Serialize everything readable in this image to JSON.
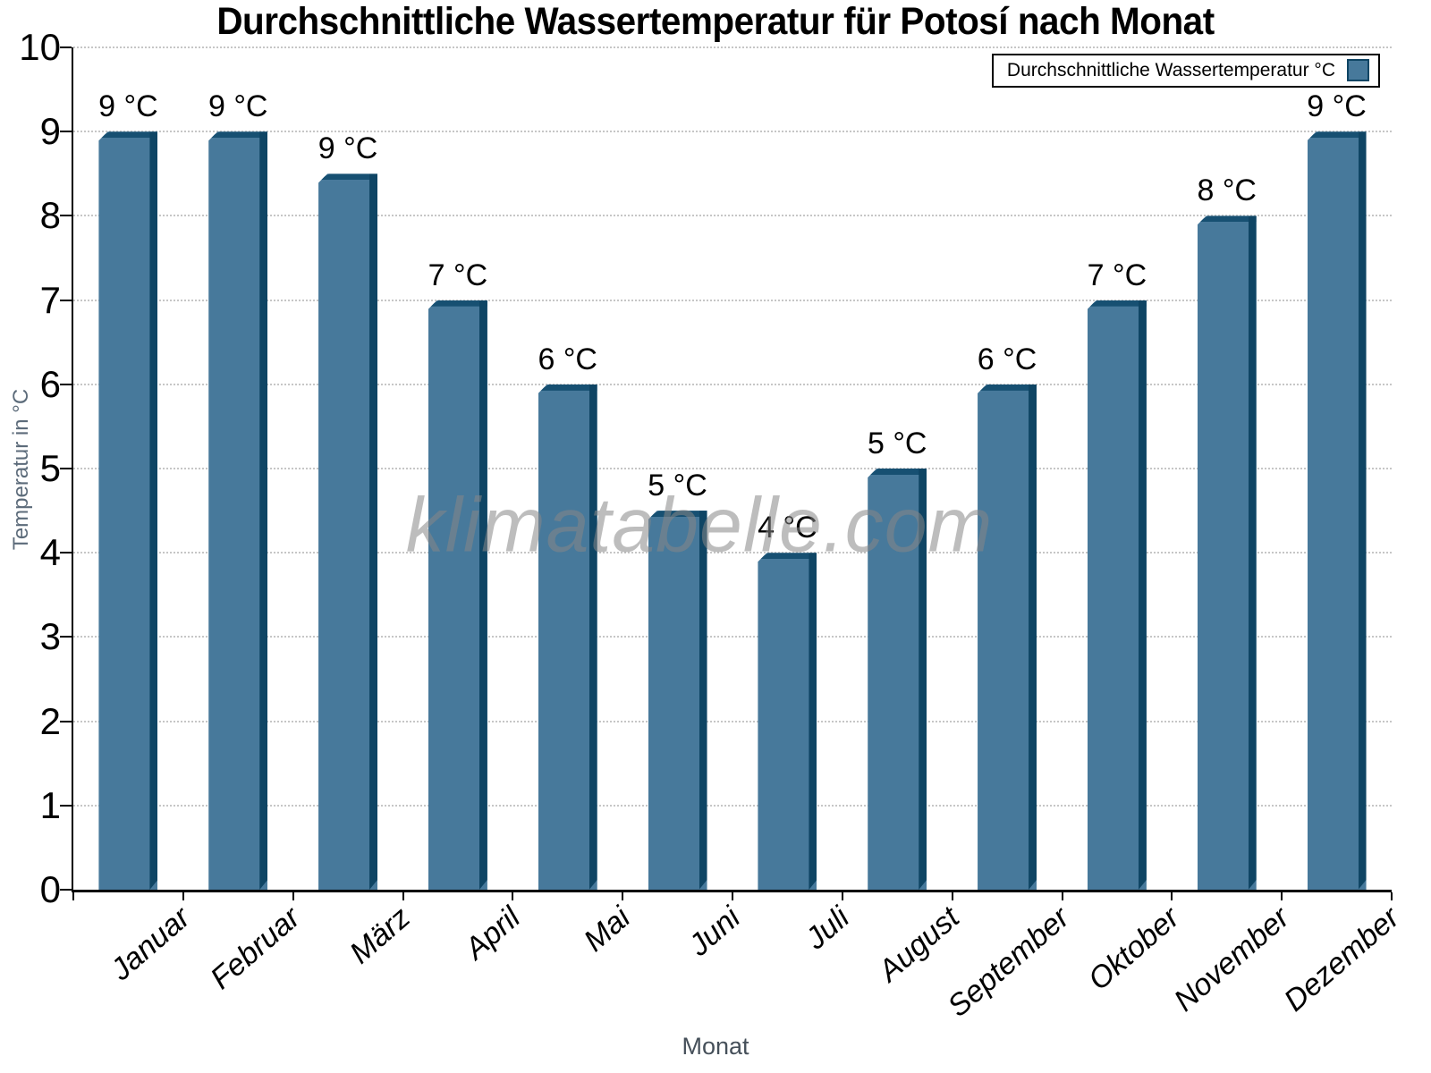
{
  "chart_data": {
    "type": "bar",
    "title": "Durchschnittliche Wassertemperatur für Potosí nach Monat",
    "xlabel": "Monat",
    "ylabel": "Temperatur in °C",
    "categories": [
      "Januar",
      "Februar",
      "März",
      "April",
      "Mai",
      "Juni",
      "Juli",
      "August",
      "September",
      "Oktober",
      "November",
      "Dezember"
    ],
    "values": [
      9,
      9,
      8.5,
      7,
      6,
      4.5,
      4,
      5,
      6,
      7,
      8,
      9
    ],
    "value_labels": [
      "9 °C",
      "9 °C",
      "9 °C",
      "7 °C",
      "6 °C",
      "5 °C",
      "4 °C",
      "5 °C",
      "6 °C",
      "7 °C",
      "8 °C",
      "9 °C"
    ],
    "ylim": [
      0,
      10
    ],
    "yticks": [
      0,
      1,
      2,
      3,
      4,
      5,
      6,
      7,
      8,
      9,
      10
    ],
    "grid": "horizontal-dotted",
    "legend": {
      "label": "Durchschnittliche Wassertemperatur °C",
      "position": "top-right"
    },
    "watermark": "klimatabelle.com",
    "colors": {
      "bar_face": "#47799b",
      "bar_edge": "#0f4564",
      "bar_bevel": "#175072",
      "grid": "#c6c6c6",
      "axis": "#000000",
      "axis_title_gray": "#5c6b7a"
    }
  }
}
